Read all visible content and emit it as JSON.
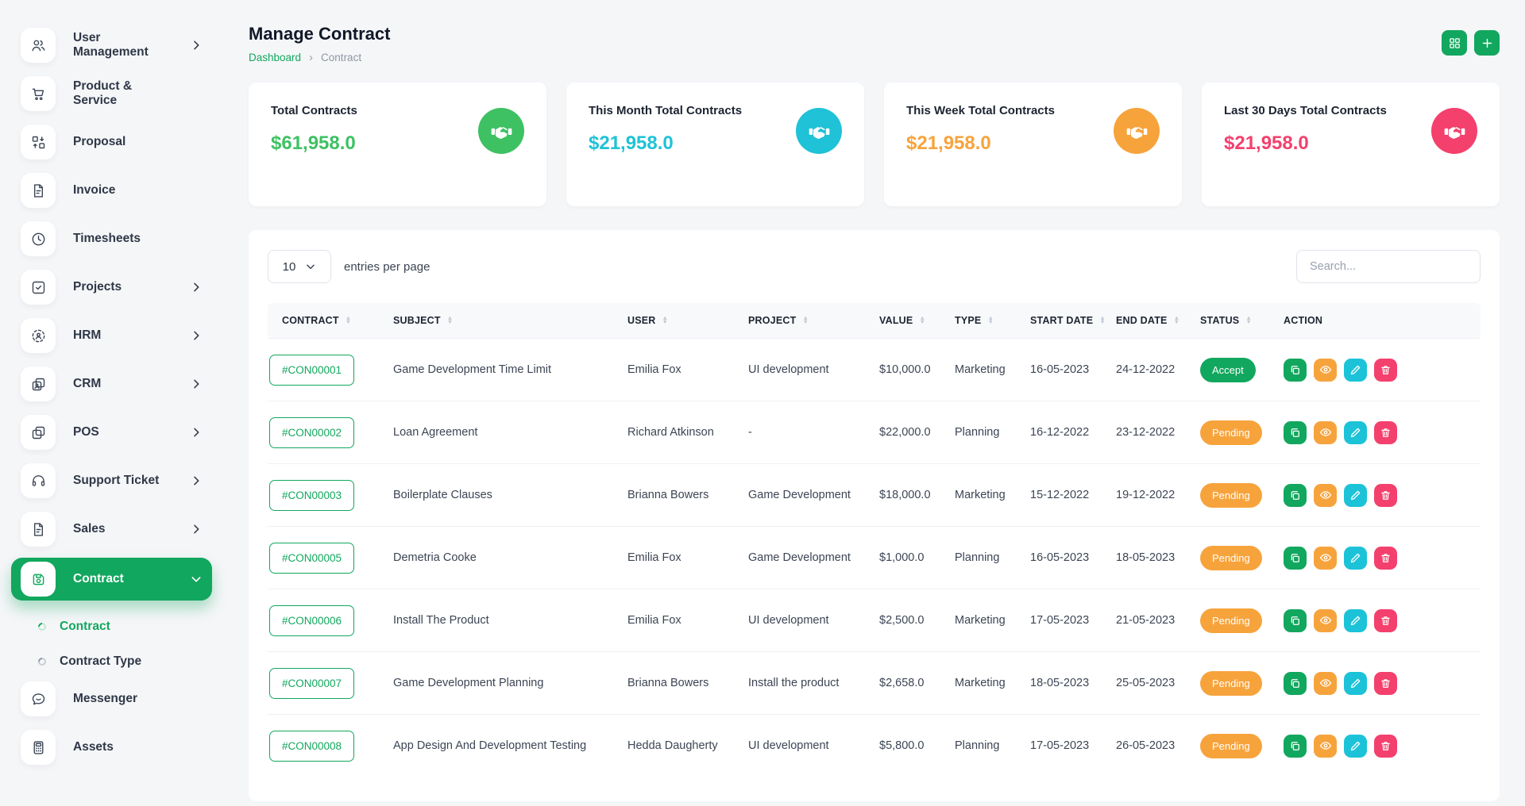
{
  "theme": {
    "primary_green": "#12a75e",
    "cyan": "#1cc3d8",
    "orange": "#f7a33c",
    "pink": "#f4406d",
    "status_colors": {
      "Accept": "#12a75e",
      "Pending": "#f7a33c"
    }
  },
  "sidebar": {
    "items": [
      {
        "type": "item",
        "icon": "users-icon",
        "label": "User Management",
        "chevron": "right"
      },
      {
        "type": "item",
        "icon": "cart-icon",
        "label": "Product & Service"
      },
      {
        "type": "item",
        "icon": "swap-boxes-icon",
        "label": "Proposal"
      },
      {
        "type": "item",
        "icon": "invoice-icon",
        "label": "Invoice"
      },
      {
        "type": "item",
        "icon": "clock-icon",
        "label": "Timesheets"
      },
      {
        "type": "item",
        "icon": "task-check-icon",
        "label": "Projects",
        "chevron": "right"
      },
      {
        "type": "item",
        "icon": "hrm-icon",
        "label": "HRM",
        "chevron": "right"
      },
      {
        "type": "item",
        "icon": "crm-icon",
        "label": "CRM",
        "chevron": "right"
      },
      {
        "type": "item",
        "icon": "pos-icon",
        "label": "POS",
        "chevron": "right"
      },
      {
        "type": "item",
        "icon": "headset-icon",
        "label": "Support Ticket",
        "chevron": "right"
      },
      {
        "type": "item",
        "icon": "sales-doc-icon",
        "label": "Sales",
        "chevron": "right"
      },
      {
        "type": "item",
        "icon": "contract-save-icon",
        "label": "Contract",
        "chevron": "down",
        "active": true
      },
      {
        "type": "sub",
        "label": "Contract",
        "active": true
      },
      {
        "type": "sub",
        "label": "Contract Type"
      },
      {
        "type": "item",
        "icon": "messenger-icon",
        "label": "Messenger"
      },
      {
        "type": "item",
        "icon": "assets-icon",
        "label": "Assets"
      }
    ]
  },
  "header": {
    "title": "Manage Contract",
    "breadcrumb_home": "Dashboard",
    "breadcrumb_separator": "›",
    "breadcrumb_current": "Contract",
    "actions": [
      {
        "name": "grid-view-button",
        "icon": "grid-icon",
        "color": "#12a75e"
      },
      {
        "name": "add-contract-button",
        "icon": "plus-icon",
        "color": "#12a75e"
      }
    ]
  },
  "cards": [
    {
      "title": "Total Contracts",
      "value": "$61,958.0",
      "color": "#3ec163",
      "icon": "handshake-icon"
    },
    {
      "title": "This Month Total Contracts",
      "value": "$21,958.0",
      "color": "#1fc2d7",
      "icon": "handshake-icon"
    },
    {
      "title": "This Week Total Contracts",
      "value": "$21,958.0",
      "color": "#f7a33c",
      "icon": "handshake-icon"
    },
    {
      "title": "Last 30 Days Total Contracts",
      "value": "$21,958.0",
      "color": "#f4406d",
      "icon": "handshake-icon"
    }
  ],
  "table": {
    "entries_per_page": "10",
    "entries_label": "entries per page",
    "search_placeholder": "Search...",
    "columns": [
      {
        "label": "CONTRACT",
        "sortable": true
      },
      {
        "label": "SUBJECT",
        "sortable": true
      },
      {
        "label": "USER",
        "sortable": true
      },
      {
        "label": "PROJECT",
        "sortable": true
      },
      {
        "label": "VALUE",
        "sortable": true
      },
      {
        "label": "TYPE",
        "sortable": true
      },
      {
        "label": "START DATE",
        "sortable": true
      },
      {
        "label": "END DATE",
        "sortable": true
      },
      {
        "label": "STATUS",
        "sortable": true
      },
      {
        "label": "ACTION",
        "sortable": false
      }
    ],
    "action_buttons": [
      {
        "name": "duplicate-button",
        "icon": "copy-icon",
        "color": "#12a75e"
      },
      {
        "name": "view-button",
        "icon": "eye-icon",
        "color": "#f7a33c"
      },
      {
        "name": "edit-button",
        "icon": "edit-icon",
        "color": "#1cc3d8"
      },
      {
        "name": "delete-button",
        "icon": "delete-icon",
        "color": "#f4406d"
      }
    ],
    "rows": [
      {
        "contract": "#CON00001",
        "subject": "Game Development Time Limit",
        "user": "Emilia Fox",
        "project": "UI development",
        "value": "$10,000.0",
        "type": "Marketing",
        "start_date": "16-05-2023",
        "end_date": "24-12-2022",
        "status": "Accept"
      },
      {
        "contract": "#CON00002",
        "subject": "Loan Agreement",
        "user": "Richard Atkinson",
        "project": "-",
        "value": "$22,000.0",
        "type": "Planning",
        "start_date": "16-12-2022",
        "end_date": "23-12-2022",
        "status": "Pending"
      },
      {
        "contract": "#CON00003",
        "subject": "Boilerplate Clauses",
        "user": "Brianna Bowers",
        "project": "Game Development",
        "value": "$18,000.0",
        "type": "Marketing",
        "start_date": "15-12-2022",
        "end_date": "19-12-2022",
        "status": "Pending"
      },
      {
        "contract": "#CON00005",
        "subject": "Demetria Cooke",
        "user": "Emilia Fox",
        "project": "Game Development",
        "value": "$1,000.0",
        "type": "Planning",
        "start_date": "16-05-2023",
        "end_date": "18-05-2023",
        "status": "Pending"
      },
      {
        "contract": "#CON00006",
        "subject": "Install The Product",
        "user": "Emilia Fox",
        "project": "UI development",
        "value": "$2,500.0",
        "type": "Marketing",
        "start_date": "17-05-2023",
        "end_date": "21-05-2023",
        "status": "Pending"
      },
      {
        "contract": "#CON00007",
        "subject": "Game Development Planning",
        "user": "Brianna Bowers",
        "project": "Install the product",
        "value": "$2,658.0",
        "type": "Marketing",
        "start_date": "18-05-2023",
        "end_date": "25-05-2023",
        "status": "Pending"
      },
      {
        "contract": "#CON00008",
        "subject": "App Design And Development Testing",
        "user": "Hedda Daugherty",
        "project": "UI development",
        "value": "$5,800.0",
        "type": "Planning",
        "start_date": "17-05-2023",
        "end_date": "26-05-2023",
        "status": "Pending"
      }
    ]
  }
}
